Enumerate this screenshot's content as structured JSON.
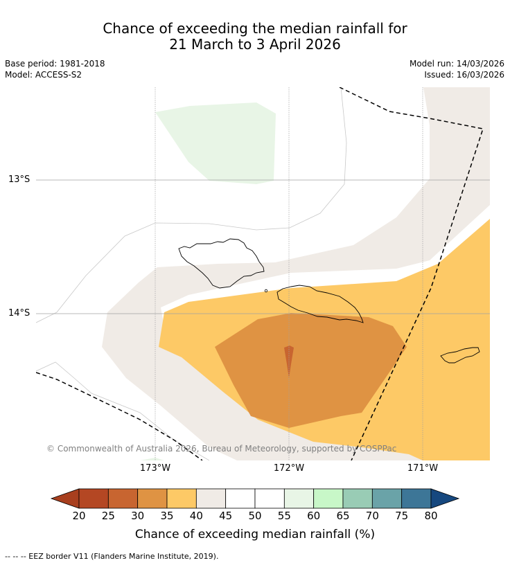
{
  "header": {
    "title_line1": "Chance of exceeding the median rainfall for",
    "title_line2": "21 March to 3 April 2026",
    "base_period": "Base period: 1981-2018",
    "model": "Model: ACCESS-S2",
    "model_run": "Model run: 14/03/2026",
    "issued": "Issued: 16/03/2026"
  },
  "map": {
    "latitude_labels": [
      "13°S",
      "14°S"
    ],
    "longitude_labels": [
      "173°W",
      "172°W",
      "171°W"
    ],
    "copyright": "© Commonwealth of Australia 2026, Bureau of Meteorology, supported by COSPPac"
  },
  "colorbar": {
    "ticks": [
      "20",
      "25",
      "30",
      "35",
      "40",
      "45",
      "50",
      "55",
      "60",
      "65",
      "70",
      "75",
      "80"
    ],
    "colors": [
      "#a83f1e",
      "#b44723",
      "#c86530",
      "#df9343",
      "#fdc966",
      "#f0ebe6",
      "#ffffff",
      "#ffffff",
      "#e8f5e6",
      "#c8f7c8",
      "#99ccb5",
      "#6aa3a8",
      "#3d7697",
      "#16487f"
    ],
    "label": "Chance of exceeding median rainfall (%)"
  },
  "footnote": "--  --  -- EEZ border V11 (Flanders Marine Institute, 2019)."
}
